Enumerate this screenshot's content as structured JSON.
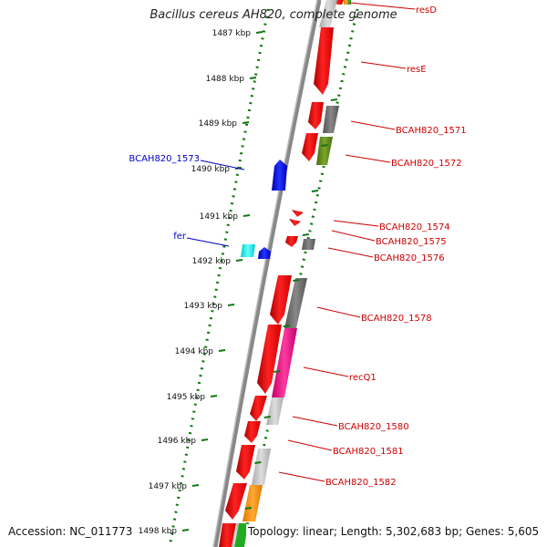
{
  "title": "Bacillus cereus AH820, complete genome",
  "footer": {
    "accession": "Accession: NC_011773",
    "topology": "Topology: linear; Length: 5,302,683 bp; Genes: 5,605"
  },
  "ticks": [
    "1487 kbp",
    "1488 kbp",
    "1489 kbp",
    "1490 kbp",
    "1491 kbp",
    "1492 kbp",
    "1493 kbp",
    "1494 kbp",
    "1495 kbp",
    "1496 kbp",
    "1497 kbp",
    "1498 kbp"
  ],
  "gene_labels_forward": [
    "resD",
    "resE",
    "BCAH820_1571",
    "BCAH820_1572",
    "BCAH820_1574",
    "BCAH820_1575",
    "BCAH820_1576",
    "BCAH820_1578",
    "recQ1",
    "BCAH820_1580",
    "BCAH820_1581",
    "BCAH820_1582"
  ],
  "gene_labels_reverse": [
    "BCAH820_1573",
    "fer"
  ],
  "colors": {
    "forward_label": "#cc0000",
    "reverse_label": "#0000cc",
    "forward_gene": "#ee0000",
    "reverse_gene": "#0000ee",
    "tick": "#117711",
    "backbone": "#888888"
  }
}
